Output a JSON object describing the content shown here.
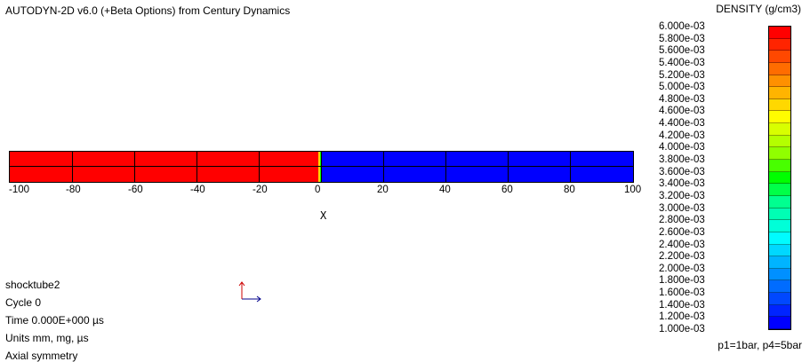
{
  "window": {
    "title": "AUTODYN-2D v6.0 (+Beta Options) from Century Dynamics"
  },
  "legend": {
    "title": "DENSITY (g/cm3)",
    "labels": [
      "6.000e-03",
      "5.800e-03",
      "5.600e-03",
      "5.400e-03",
      "5.200e-03",
      "5.000e-03",
      "4.800e-03",
      "4.600e-03",
      "4.400e-03",
      "4.200e-03",
      "4.000e-03",
      "3.800e-03",
      "3.600e-03",
      "3.400e-03",
      "3.200e-03",
      "3.000e-03",
      "2.800e-03",
      "2.600e-03",
      "2.400e-03",
      "2.200e-03",
      "2.000e-03",
      "1.800e-03",
      "1.600e-03",
      "1.400e-03",
      "1.200e-03",
      "1.000e-03"
    ],
    "colors": [
      "#ff0000",
      "#ff2400",
      "#ff4800",
      "#ff6c00",
      "#ff9000",
      "#ffb400",
      "#ffd800",
      "#fffc00",
      "#d8ff00",
      "#b4ff00",
      "#90ff00",
      "#48ff00",
      "#00ff00",
      "#00ff48",
      "#00ff90",
      "#00ffb4",
      "#00ffd8",
      "#00fcff",
      "#00d8ff",
      "#00b4ff",
      "#0090ff",
      "#006cff",
      "#0048ff",
      "#0024ff",
      "#0000ff"
    ]
  },
  "plot": {
    "x_ticks": [
      "-100",
      "-80",
      "-60",
      "-40",
      "-20",
      "0",
      "20",
      "40",
      "60",
      "80",
      "100"
    ],
    "x_label": "X",
    "left_color": "#ff0000",
    "right_color": "#0000ff",
    "interface_colors": [
      "#ffd800",
      "#00ff00"
    ]
  },
  "info": {
    "problem": "shocktube2",
    "cycle": "Cycle 0",
    "time": "Time 0.000E+000 µs",
    "units": "Units mm, mg, µs",
    "symmetry": "Axial symmetry"
  },
  "footer": {
    "note": "p1=1bar, p4=5bar"
  },
  "triad": {
    "x_color": "#00008b",
    "y_color": "#cc0000"
  }
}
